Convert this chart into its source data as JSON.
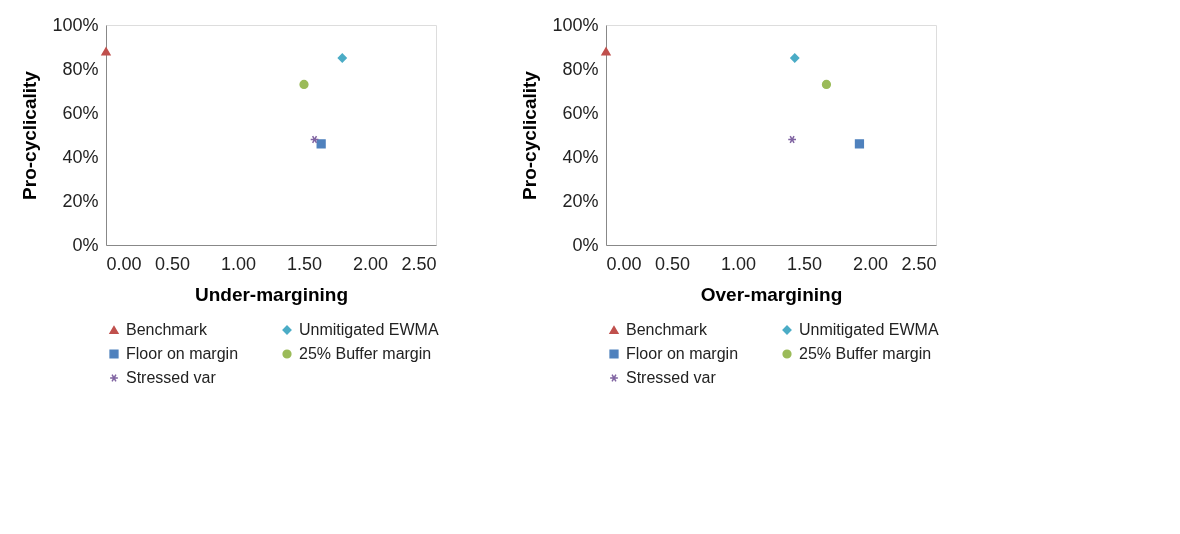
{
  "chart_data": [
    {
      "type": "scatter",
      "xlabel": "Under-margining",
      "ylabel": "Pro-cyclicality",
      "xlim": [
        0,
        2.5
      ],
      "ylim": [
        0,
        100
      ],
      "xticks": [
        {
          "value": 0,
          "label": "0.00"
        },
        {
          "value": 0.5,
          "label": "0.50"
        },
        {
          "value": 1,
          "label": "1.00"
        },
        {
          "value": 1.5,
          "label": "1.50"
        },
        {
          "value": 2,
          "label": "2.00"
        },
        {
          "value": 2.5,
          "label": "2.50"
        }
      ],
      "yticks": [
        {
          "value": 0,
          "label": "0%"
        },
        {
          "value": 20,
          "label": "20%"
        },
        {
          "value": 40,
          "label": "40%"
        },
        {
          "value": 60,
          "label": "60%"
        },
        {
          "value": 80,
          "label": "80%"
        },
        {
          "value": 100,
          "label": "100%"
        }
      ],
      "grid": false,
      "legend": "bottom",
      "series": [
        {
          "name": "Benchmark",
          "color": "#c0504d",
          "marker": "triangle",
          "x": [
            0.0
          ],
          "values": [
            88
          ]
        },
        {
          "name": "Unmitigated EWMA",
          "color": "#4bacc6",
          "marker": "diamond",
          "x": [
            1.79
          ],
          "values": [
            85
          ]
        },
        {
          "name": "Floor on margin",
          "color": "#4f81bd",
          "marker": "square",
          "x": [
            1.63
          ],
          "values": [
            46
          ]
        },
        {
          "name": "25% Buffer margin",
          "color": "#9bbb59",
          "marker": "circle",
          "x": [
            1.5
          ],
          "values": [
            73
          ]
        },
        {
          "name": "Stressed var",
          "color": "#8064a2",
          "marker": "cross",
          "x": [
            1.58
          ],
          "values": [
            48
          ]
        }
      ]
    },
    {
      "type": "scatter",
      "xlabel": "Over-margining",
      "ylabel": "Pro-cyclicality",
      "xlim": [
        0,
        2.5
      ],
      "ylim": [
        0,
        100
      ],
      "xticks": [
        {
          "value": 0,
          "label": "0.00"
        },
        {
          "value": 0.5,
          "label": "0.50"
        },
        {
          "value": 1,
          "label": "1.00"
        },
        {
          "value": 1.5,
          "label": "1.50"
        },
        {
          "value": 2,
          "label": "2.00"
        },
        {
          "value": 2.5,
          "label": "2.50"
        }
      ],
      "yticks": [
        {
          "value": 0,
          "label": "0%"
        },
        {
          "value": 20,
          "label": "20%"
        },
        {
          "value": 40,
          "label": "40%"
        },
        {
          "value": 60,
          "label": "60%"
        },
        {
          "value": 80,
          "label": "80%"
        },
        {
          "value": 100,
          "label": "100%"
        }
      ],
      "grid": false,
      "legend": "bottom",
      "series": [
        {
          "name": "Benchmark",
          "color": "#c0504d",
          "marker": "triangle",
          "x": [
            0.0
          ],
          "values": [
            88
          ]
        },
        {
          "name": "Unmitigated EWMA",
          "color": "#4bacc6",
          "marker": "diamond",
          "x": [
            1.43
          ],
          "values": [
            85
          ]
        },
        {
          "name": "Floor on margin",
          "color": "#4f81bd",
          "marker": "square",
          "x": [
            1.92
          ],
          "values": [
            46
          ]
        },
        {
          "name": "25% Buffer margin",
          "color": "#9bbb59",
          "marker": "circle",
          "x": [
            1.67
          ],
          "values": [
            73
          ]
        },
        {
          "name": "Stressed var",
          "color": "#8064a2",
          "marker": "cross",
          "x": [
            1.41
          ],
          "values": [
            48
          ]
        }
      ]
    }
  ]
}
